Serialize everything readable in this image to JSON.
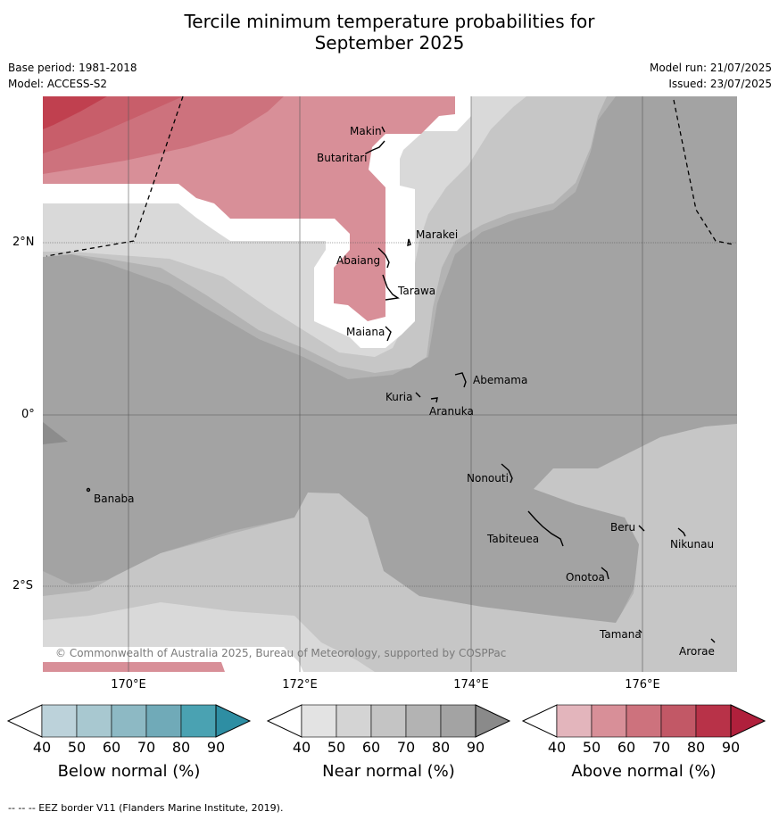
{
  "header": {
    "title_line1": "Tercile minimum temperature probabilities for",
    "title_line2": "September 2025",
    "base_period": "Base period: 1981-2018",
    "model": "Model: ACCESS-S2",
    "model_run": "Model run: 21/07/2025",
    "issued": "Issued: 23/07/2025"
  },
  "map": {
    "lat_labels": [
      "2°N",
      "0°",
      "2°S"
    ],
    "lon_labels": [
      "170°E",
      "172°E",
      "174°E",
      "176°E"
    ],
    "places": [
      {
        "name": "Makin"
      },
      {
        "name": "Butaritari"
      },
      {
        "name": "Marakei"
      },
      {
        "name": "Abaiang"
      },
      {
        "name": "Tarawa"
      },
      {
        "name": "Maiana"
      },
      {
        "name": "Abemama"
      },
      {
        "name": "Kuria"
      },
      {
        "name": "Aranuka"
      },
      {
        "name": "Nonouti"
      },
      {
        "name": "Banaba"
      },
      {
        "name": "Tabiteuea"
      },
      {
        "name": "Beru"
      },
      {
        "name": "Nikunau"
      },
      {
        "name": "Onotoa"
      },
      {
        "name": "Tamana"
      },
      {
        "name": "Arorae"
      }
    ],
    "copyright": "© Commonwealth of Australia 2025, Bureau of Meteorology, supported by COSPPac",
    "colors": {
      "near_50": "#d9d9d9",
      "near_60": "#c6c6c6",
      "near_70": "#b3b3b3",
      "near_80": "#a3a3a3",
      "near_90": "#8c8c8c",
      "above_50": "#d88f98",
      "above_60": "#cd727d",
      "above_70": "#c85e6a",
      "above_80": "#c0404f"
    }
  },
  "colorbars": [
    {
      "title": "Below normal (%)",
      "ticks": [
        "40",
        "50",
        "60",
        "70",
        "80",
        "90"
      ],
      "colors": [
        "#ffffff",
        "#bcd2da",
        "#a8c8d0",
        "#8db9c4",
        "#70aab8",
        "#4aa2b2",
        "#2e8ea3"
      ]
    },
    {
      "title": "Near normal (%)",
      "ticks": [
        "40",
        "50",
        "60",
        "70",
        "80",
        "90"
      ],
      "colors": [
        "#ffffff",
        "#e3e3e3",
        "#d4d4d4",
        "#c4c4c4",
        "#b3b3b3",
        "#a3a3a3",
        "#8a8a8a"
      ]
    },
    {
      "title": "Above normal (%)",
      "ticks": [
        "40",
        "50",
        "60",
        "70",
        "80",
        "90"
      ],
      "colors": [
        "#ffffff",
        "#e3b5bc",
        "#d88f98",
        "#cd727d",
        "#c25866",
        "#b83248",
        "#b0203c"
      ]
    }
  ],
  "footer": "--  --  -- EEZ border V11 (Flanders Marine Institute, 2019)."
}
